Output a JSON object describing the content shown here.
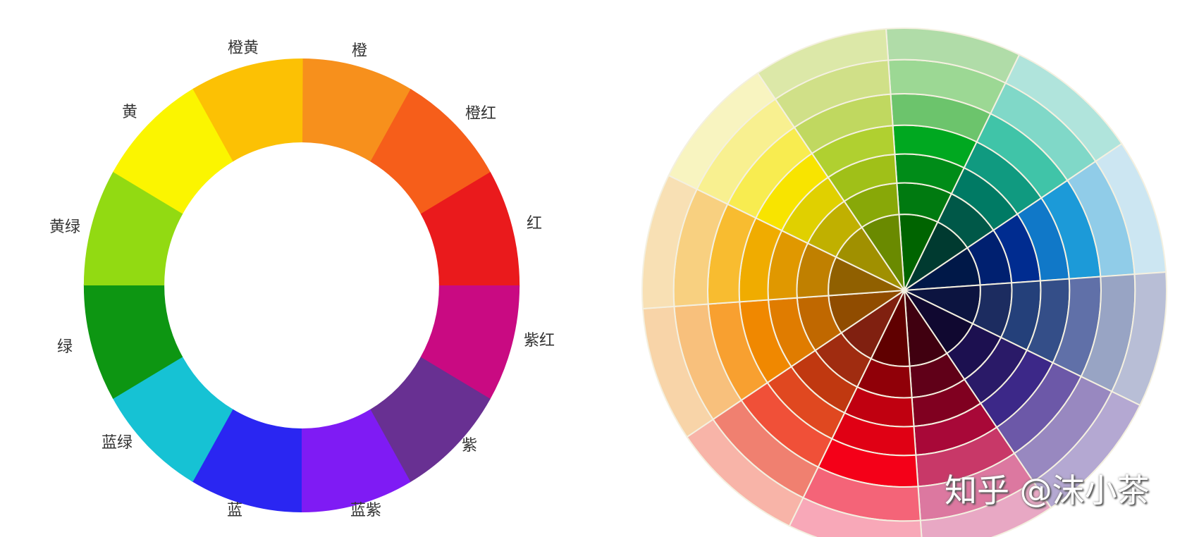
{
  "left_wheel": {
    "segments": [
      {
        "label": "橙",
        "color": "#f7901c"
      },
      {
        "label": "橙红",
        "color": "#f65e1a"
      },
      {
        "label": "红",
        "color": "#ea1a1c"
      },
      {
        "label": "紫红",
        "color": "#c90a82"
      },
      {
        "label": "紫",
        "color": "#683092"
      },
      {
        "label": "蓝紫",
        "color": "#7f1bf4"
      },
      {
        "label": "蓝",
        "color": "#2a26f2"
      },
      {
        "label": "蓝绿",
        "color": "#16c2d4"
      },
      {
        "label": "绿",
        "color": "#0d9612"
      },
      {
        "label": "黄绿",
        "color": "#92da12"
      },
      {
        "label": "黄",
        "color": "#fbf500"
      },
      {
        "label": "橙黄",
        "color": "#fcc104"
      }
    ]
  },
  "right_wheel": {
    "sectors": [
      {
        "colors": [
          "#006400",
          "#007a10",
          "#008c18",
          "#00a820",
          "#6cc46c",
          "#9cd894",
          "#b0dca8"
        ]
      },
      {
        "colors": [
          "#003a30",
          "#005848",
          "#007a64",
          "#109a80",
          "#40c4a8",
          "#80d8c8",
          "#b0e4dc"
        ]
      },
      {
        "colors": [
          "#001848",
          "#002070",
          "#002c90",
          "#1078c8",
          "#1c9ad8",
          "#90cce8",
          "#cce6f2"
        ]
      },
      {
        "colors": [
          "#0c1440",
          "#1c2c60",
          "#24407a",
          "#344e88",
          "#6070a8",
          "#98a4c4",
          "#b8bed6"
        ]
      },
      {
        "colors": [
          "#100830",
          "#1c1050",
          "#2a1a68",
          "#3c2888",
          "#6c58a8",
          "#9888c0",
          "#b4a8d2"
        ]
      },
      {
        "colors": [
          "#400010",
          "#600018",
          "#800020",
          "#a80838",
          "#c83868",
          "#dc78a0",
          "#e8a8c4"
        ]
      },
      {
        "colors": [
          "#600000",
          "#900008",
          "#c00010",
          "#e00014",
          "#f40018",
          "#f46478",
          "#f8a8b8"
        ]
      },
      {
        "colors": [
          "#802010",
          "#a02c10",
          "#c03810",
          "#e04820",
          "#f05038",
          "#f08070",
          "#f8b4a8"
        ]
      },
      {
        "colors": [
          "#904c00",
          "#c06800",
          "#e07c00",
          "#f08800",
          "#f8a030",
          "#f8c07c",
          "#f8d4a8"
        ]
      },
      {
        "colors": [
          "#906000",
          "#c08000",
          "#e09800",
          "#f0ac00",
          "#f8bc30",
          "#f8d080",
          "#f8e0b4"
        ]
      },
      {
        "colors": [
          "#a09000",
          "#c0b000",
          "#e0d000",
          "#f8e400",
          "#f8ec50",
          "#f8f090",
          "#f8f4c0"
        ]
      },
      {
        "colors": [
          "#6a8a00",
          "#88a808",
          "#a0c018",
          "#b0d030",
          "#c0d860",
          "#d0e088",
          "#dce8a8"
        ]
      }
    ]
  },
  "watermark": "知乎 @沫小茶"
}
